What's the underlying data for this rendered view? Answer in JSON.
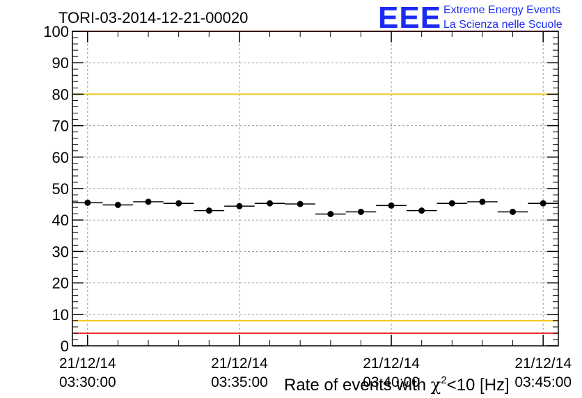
{
  "header": {
    "run_title": "TORI-03-2014-12-21-00020",
    "logo_mark": "EEE",
    "logo_line1": "Extreme Energy Events",
    "logo_line2": "La Scienza nelle Scuole"
  },
  "colors": {
    "upper_alarm": "#e8211d",
    "upper_warning": "#f0c81a",
    "lower_warning": "#f0c81a",
    "lower_alarm": "#e8211d",
    "points": "#000000",
    "grid": "#999999",
    "logo": "#1c2bf2"
  },
  "chart_data": {
    "type": "scatter",
    "title": "TORI-03-2014-12-21-00020",
    "xlabel_prefix": "Rate of events with ",
    "xlabel_symbol": "χ",
    "xlabel_sup": "2",
    "xlabel_suffix": "<10 [Hz]",
    "ylabel": "",
    "ylim": [
      0,
      100
    ],
    "yticks": [
      "0",
      "10",
      "20",
      "30",
      "40",
      "50",
      "60",
      "70",
      "80",
      "90",
      "100"
    ],
    "xlim": [
      "21/12/14 03:29:30",
      "21/12/14 03:45:30"
    ],
    "xtick_labels": [
      {
        "date": "21/12/14",
        "time": "03:30:00"
      },
      {
        "date": "21/12/14",
        "time": "03:35:00"
      },
      {
        "date": "21/12/14",
        "time": "03:40:00"
      },
      {
        "date": "21/12/14",
        "time": "03:45:00"
      }
    ],
    "x": [
      "03:30:00",
      "03:31:00",
      "03:32:00",
      "03:33:00",
      "03:34:00",
      "03:35:00",
      "03:36:00",
      "03:37:00",
      "03:38:00",
      "03:39:00",
      "03:40:00",
      "03:41:00",
      "03:42:00",
      "03:43:00",
      "03:44:00",
      "03:45:00"
    ],
    "y": [
      45.5,
      44.8,
      45.8,
      45.3,
      43.0,
      44.4,
      45.3,
      45.1,
      41.9,
      42.6,
      44.6,
      43.0,
      45.3,
      45.8,
      42.6,
      45.3
    ],
    "bin_width_seconds": 60,
    "reference_lines": [
      {
        "name": "upper-alarm",
        "value": 100,
        "color": "#e8211d"
      },
      {
        "name": "upper-warning",
        "value": 80,
        "color": "#f0c81a"
      },
      {
        "name": "lower-warning",
        "value": 8,
        "color": "#f0c81a"
      },
      {
        "name": "lower-alarm",
        "value": 4,
        "color": "#e8211d"
      }
    ],
    "grid": true,
    "legend": "none"
  }
}
